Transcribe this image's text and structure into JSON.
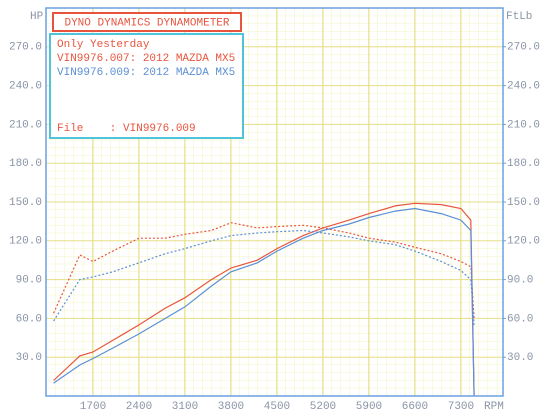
{
  "chart_data": {
    "type": "line",
    "title": "DYNO DYNAMICS DYNAMOMETER",
    "subtitle": "Only Yesterday",
    "annotation": "File    : VIN9976.009",
    "y_label": "HP",
    "y2_label": "FtLb",
    "x_label": "RPM",
    "x": [
      1100,
      1500,
      1700,
      2000,
      2400,
      2800,
      3100,
      3500,
      3800,
      4200,
      4500,
      4900,
      5200,
      5600,
      5900,
      6300,
      6600,
      7000,
      7300,
      7450,
      7500
    ],
    "series": [
      {
        "name": "VIN9976.007: 2012 MAZDA MX5",
        "color": "#e8553f",
        "values": [
          12,
          31,
          34,
          43,
          55,
          68,
          76,
          90,
          99,
          105,
          114,
          124,
          130,
          136,
          141,
          147,
          149,
          148,
          145,
          136,
          0
        ],
        "torque": [
          64,
          109,
          104,
          112,
          122,
          122,
          125,
          128,
          134,
          130,
          131,
          132,
          130,
          126,
          122,
          119,
          115,
          110,
          104,
          100,
          60
        ]
      },
      {
        "name": "VIN9976.009: 2012 MAZDA MX5",
        "color": "#5b8fd6",
        "values": [
          10,
          24,
          29,
          37,
          48,
          60,
          69,
          85,
          96,
          103,
          112,
          122,
          128,
          133,
          138,
          143,
          145,
          141,
          136,
          128,
          0
        ],
        "torque": [
          58,
          90,
          92,
          96,
          103,
          110,
          114,
          120,
          124,
          126,
          127,
          128,
          126,
          123,
          120,
          117,
          112,
          104,
          97,
          90,
          55
        ]
      }
    ],
    "xlim": [
      985,
      7940
    ],
    "xticks": [
      1700,
      2400,
      3100,
      3800,
      4500,
      5200,
      5900,
      6600,
      7300
    ],
    "ylim": [
      0,
      300
    ],
    "yticks": [
      {
        "value": 30,
        "label": "30.0"
      },
      {
        "value": 60,
        "label": "60.0"
      },
      {
        "value": 90,
        "label": "90.0"
      },
      {
        "value": 120,
        "label": "120.0"
      },
      {
        "value": 150,
        "label": "150.0"
      },
      {
        "value": 180,
        "label": "180.0"
      },
      {
        "value": 210,
        "label": "210.0"
      },
      {
        "value": 240,
        "label": "240.0"
      },
      {
        "value": 270,
        "label": "270.0"
      }
    ],
    "y2lim": [
      0,
      300
    ],
    "y2ticks": [
      {
        "value": 30,
        "label": "30.0"
      },
      {
        "value": 60,
        "label": "60.0"
      },
      {
        "value": 90,
        "label": "90.0"
      },
      {
        "value": 120,
        "label": "120.0"
      },
      {
        "value": 150,
        "label": "150.0"
      },
      {
        "value": 180,
        "label": "180.0"
      },
      {
        "value": 210,
        "label": "210.0"
      },
      {
        "value": 240,
        "label": "240.0"
      },
      {
        "value": 270,
        "label": "270.0"
      }
    ],
    "grid": true
  }
}
